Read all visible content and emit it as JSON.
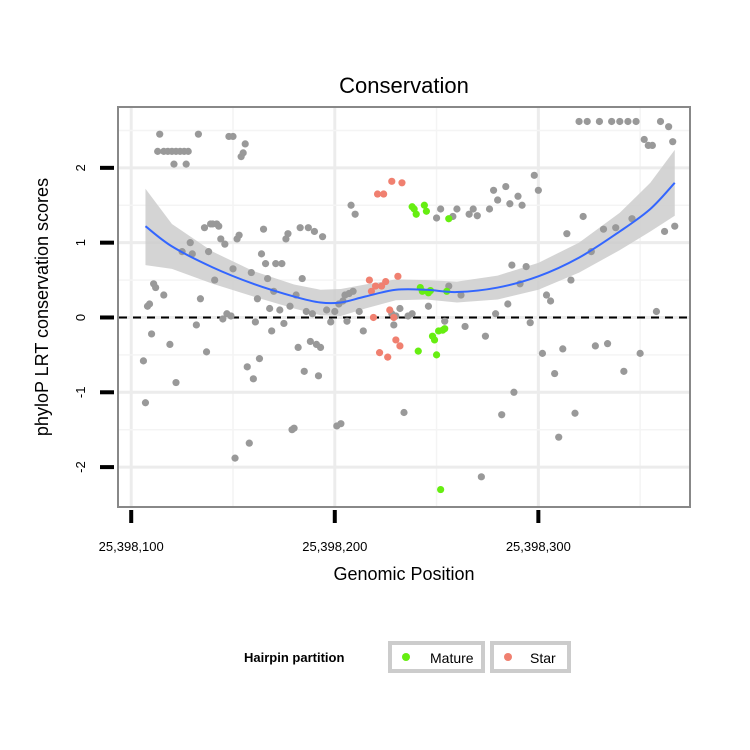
{
  "chart_data": {
    "type": "scatter",
    "title": "Conservation",
    "xlabel": "Genomic Position",
    "ylabel": "phyloP LRT conservation scores",
    "xlim": [
      25398094,
      25398374
    ],
    "ylim": [
      -2.52,
      2.8
    ],
    "x_ticks": [
      25398100,
      25398200,
      25398300
    ],
    "x_tick_labels": [
      "25,398,100",
      "25,398,200",
      "25,398,300"
    ],
    "y_ticks": [
      -2,
      -1,
      0,
      1,
      2
    ],
    "y_tick_labels": [
      "-2",
      "-1",
      "0",
      "1",
      "2"
    ],
    "grid": true,
    "reference_line": {
      "y": 0,
      "style": "dashed"
    },
    "colors": {
      "other": "#999999",
      "mature": "#66ee11",
      "star": "#f08070",
      "smooth": "#3366ff",
      "ribbon": "#cccccc"
    },
    "legend": {
      "title": "Hairpin partition",
      "position": "bottom",
      "entries": [
        {
          "label": "Mature",
          "color": "#66ee11"
        },
        {
          "label": "Star",
          "color": "#f08070"
        }
      ]
    },
    "series": [
      {
        "group": "other",
        "points": [
          [
            25398106,
            -0.58
          ],
          [
            25398107,
            -1.14
          ],
          [
            25398108,
            0.15
          ],
          [
            25398109,
            0.18
          ],
          [
            25398110,
            -0.22
          ],
          [
            25398111,
            0.45
          ],
          [
            25398112,
            0.4
          ],
          [
            25398113,
            2.22
          ],
          [
            25398114,
            2.45
          ],
          [
            25398116,
            2.22
          ],
          [
            25398116,
            0.3
          ],
          [
            25398118,
            2.22
          ],
          [
            25398119,
            -0.36
          ],
          [
            25398120,
            2.22
          ],
          [
            25398121,
            2.05
          ],
          [
            25398122,
            2.22
          ],
          [
            25398122,
            -0.87
          ],
          [
            25398124,
            2.22
          ],
          [
            25398125,
            0.88
          ],
          [
            25398126,
            2.22
          ],
          [
            25398127,
            2.05
          ],
          [
            25398128,
            2.22
          ],
          [
            25398129,
            1.0
          ],
          [
            25398130,
            0.85
          ],
          [
            25398132,
            -0.1
          ],
          [
            25398133,
            2.45
          ],
          [
            25398134,
            0.25
          ],
          [
            25398136,
            1.2
          ],
          [
            25398137,
            -0.46
          ],
          [
            25398138,
            0.88
          ],
          [
            25398139,
            1.25
          ],
          [
            25398140,
            1.25
          ],
          [
            25398141,
            0.5
          ],
          [
            25398142,
            1.25
          ],
          [
            25398143,
            1.22
          ],
          [
            25398144,
            1.05
          ],
          [
            25398145,
            -0.02
          ],
          [
            25398146,
            0.98
          ],
          [
            25398147,
            0.05
          ],
          [
            25398148,
            2.42
          ],
          [
            25398149,
            0.02
          ],
          [
            25398150,
            2.42
          ],
          [
            25398150,
            0.65
          ],
          [
            25398151,
            -1.88
          ],
          [
            25398152,
            1.05
          ],
          [
            25398153,
            1.1
          ],
          [
            25398154,
            2.15
          ],
          [
            25398155,
            2.2
          ],
          [
            25398156,
            2.32
          ],
          [
            25398157,
            -0.66
          ],
          [
            25398158,
            -1.68
          ],
          [
            25398159,
            0.6
          ],
          [
            25398160,
            -0.82
          ],
          [
            25398161,
            -0.06
          ],
          [
            25398162,
            0.25
          ],
          [
            25398163,
            -0.55
          ],
          [
            25398164,
            0.85
          ],
          [
            25398165,
            1.18
          ],
          [
            25398166,
            0.72
          ],
          [
            25398167,
            0.52
          ],
          [
            25398168,
            0.12
          ],
          [
            25398169,
            -0.18
          ],
          [
            25398170,
            0.35
          ],
          [
            25398171,
            0.72
          ],
          [
            25398173,
            0.1
          ],
          [
            25398174,
            0.72
          ],
          [
            25398175,
            -0.08
          ],
          [
            25398176,
            1.05
          ],
          [
            25398177,
            1.12
          ],
          [
            25398178,
            0.15
          ],
          [
            25398179,
            -1.5
          ],
          [
            25398180,
            -1.48
          ],
          [
            25398181,
            0.3
          ],
          [
            25398182,
            -0.4
          ],
          [
            25398183,
            1.2
          ],
          [
            25398184,
            0.52
          ],
          [
            25398185,
            -0.72
          ],
          [
            25398186,
            0.08
          ],
          [
            25398187,
            1.2
          ],
          [
            25398188,
            -0.32
          ],
          [
            25398189,
            0.05
          ],
          [
            25398190,
            1.15
          ],
          [
            25398191,
            -0.36
          ],
          [
            25398192,
            -0.78
          ],
          [
            25398193,
            -0.4
          ],
          [
            25398194,
            1.08
          ],
          [
            25398196,
            0.1
          ],
          [
            25398198,
            -0.06
          ],
          [
            25398200,
            0.08
          ],
          [
            25398201,
            -1.45
          ],
          [
            25398202,
            0.18
          ],
          [
            25398203,
            -1.42
          ],
          [
            25398204,
            0.22
          ],
          [
            25398205,
            0.3
          ],
          [
            25398206,
            -0.05
          ],
          [
            25398207,
            0.32
          ],
          [
            25398208,
            1.5
          ],
          [
            25398209,
            0.35
          ],
          [
            25398210,
            1.38
          ],
          [
            25398212,
            0.08
          ],
          [
            25398214,
            -0.18
          ],
          [
            25398228,
            0.05
          ],
          [
            25398229,
            -0.1
          ],
          [
            25398230,
            0.02
          ],
          [
            25398232,
            0.12
          ],
          [
            25398234,
            -1.27
          ],
          [
            25398236,
            0.02
          ],
          [
            25398238,
            0.05
          ],
          [
            25398246,
            0.15
          ],
          [
            25398250,
            1.33
          ],
          [
            25398252,
            1.45
          ],
          [
            25398254,
            -0.05
          ],
          [
            25398256,
            0.42
          ],
          [
            25398258,
            1.35
          ],
          [
            25398260,
            1.45
          ],
          [
            25398262,
            0.3
          ],
          [
            25398264,
            -0.12
          ],
          [
            25398266,
            1.38
          ],
          [
            25398268,
            1.45
          ],
          [
            25398270,
            1.36
          ],
          [
            25398272,
            -2.13
          ],
          [
            25398274,
            -0.25
          ],
          [
            25398276,
            1.45
          ],
          [
            25398278,
            1.7
          ],
          [
            25398279,
            0.05
          ],
          [
            25398280,
            1.57
          ],
          [
            25398282,
            -1.3
          ],
          [
            25398284,
            1.75
          ],
          [
            25398285,
            0.18
          ],
          [
            25398286,
            1.52
          ],
          [
            25398287,
            0.7
          ],
          [
            25398288,
            -1.0
          ],
          [
            25398290,
            1.62
          ],
          [
            25398291,
            0.45
          ],
          [
            25398292,
            1.5
          ],
          [
            25398294,
            0.68
          ],
          [
            25398296,
            -0.07
          ],
          [
            25398298,
            1.9
          ],
          [
            25398300,
            1.7
          ],
          [
            25398302,
            -0.48
          ],
          [
            25398304,
            0.3
          ],
          [
            25398306,
            0.22
          ],
          [
            25398308,
            -0.75
          ],
          [
            25398310,
            -1.6
          ],
          [
            25398312,
            -0.42
          ],
          [
            25398314,
            1.12
          ],
          [
            25398316,
            0.5
          ],
          [
            25398318,
            -1.28
          ],
          [
            25398320,
            2.62
          ],
          [
            25398322,
            1.35
          ],
          [
            25398324,
            2.62
          ],
          [
            25398326,
            0.88
          ],
          [
            25398328,
            -0.38
          ],
          [
            25398330,
            2.62
          ],
          [
            25398332,
            1.18
          ],
          [
            25398334,
            -0.35
          ],
          [
            25398336,
            2.62
          ],
          [
            25398338,
            1.2
          ],
          [
            25398340,
            2.62
          ],
          [
            25398342,
            -0.72
          ],
          [
            25398344,
            2.62
          ],
          [
            25398346,
            1.32
          ],
          [
            25398348,
            2.62
          ],
          [
            25398350,
            -0.48
          ],
          [
            25398352,
            2.38
          ],
          [
            25398354,
            2.3
          ],
          [
            25398356,
            2.3
          ],
          [
            25398358,
            0.08
          ],
          [
            25398360,
            2.62
          ],
          [
            25398362,
            1.15
          ],
          [
            25398364,
            2.55
          ],
          [
            25398366,
            2.35
          ],
          [
            25398367,
            1.22
          ]
        ]
      },
      {
        "group": "mature",
        "points": [
          [
            25398238,
            1.48
          ],
          [
            25398239,
            1.45
          ],
          [
            25398240,
            1.38
          ],
          [
            25398241,
            -0.45
          ],
          [
            25398242,
            0.4
          ],
          [
            25398243,
            0.35
          ],
          [
            25398244,
            1.5
          ],
          [
            25398245,
            1.42
          ],
          [
            25398246,
            0.33
          ],
          [
            25398247,
            0.36
          ],
          [
            25398248,
            -0.25
          ],
          [
            25398249,
            -0.3
          ],
          [
            25398250,
            -0.5
          ],
          [
            25398251,
            -0.18
          ],
          [
            25398252,
            -2.3
          ],
          [
            25398253,
            -0.17
          ],
          [
            25398254,
            -0.15
          ],
          [
            25398255,
            0.35
          ],
          [
            25398256,
            1.32
          ]
        ]
      },
      {
        "group": "star",
        "points": [
          [
            25398217,
            0.5
          ],
          [
            25398218,
            0.35
          ],
          [
            25398219,
            0.0
          ],
          [
            25398220,
            0.42
          ],
          [
            25398221,
            1.65
          ],
          [
            25398222,
            -0.47
          ],
          [
            25398223,
            0.42
          ],
          [
            25398224,
            1.65
          ],
          [
            25398225,
            0.48
          ],
          [
            25398226,
            -0.53
          ],
          [
            25398227,
            0.1
          ],
          [
            25398228,
            1.82
          ],
          [
            25398229,
            0.0
          ],
          [
            25398230,
            -0.3
          ],
          [
            25398231,
            0.55
          ],
          [
            25398232,
            -0.38
          ],
          [
            25398233,
            1.8
          ]
        ]
      }
    ],
    "smooth": [
      {
        "x": 25398107,
        "y": 1.22,
        "lo": 0.7,
        "hi": 1.72
      },
      {
        "x": 25398120,
        "y": 0.95,
        "lo": 0.65,
        "hi": 1.25
      },
      {
        "x": 25398140,
        "y": 0.67,
        "lo": 0.45,
        "hi": 0.88
      },
      {
        "x": 25398160,
        "y": 0.45,
        "lo": 0.28,
        "hi": 0.62
      },
      {
        "x": 25398180,
        "y": 0.28,
        "lo": 0.12,
        "hi": 0.44
      },
      {
        "x": 25398193,
        "y": 0.2,
        "lo": 0.03,
        "hi": 0.37
      },
      {
        "x": 25398203,
        "y": 0.2,
        "lo": 0.02,
        "hi": 0.38
      },
      {
        "x": 25398215,
        "y": 0.28,
        "lo": 0.12,
        "hi": 0.44
      },
      {
        "x": 25398230,
        "y": 0.37,
        "lo": 0.23,
        "hi": 0.51
      },
      {
        "x": 25398245,
        "y": 0.37,
        "lo": 0.24,
        "hi": 0.5
      },
      {
        "x": 25398260,
        "y": 0.34,
        "lo": 0.2,
        "hi": 0.48
      },
      {
        "x": 25398280,
        "y": 0.4,
        "lo": 0.24,
        "hi": 0.56
      },
      {
        "x": 25398300,
        "y": 0.55,
        "lo": 0.37,
        "hi": 0.73
      },
      {
        "x": 25398320,
        "y": 0.8,
        "lo": 0.6,
        "hi": 1.0
      },
      {
        "x": 25398340,
        "y": 1.15,
        "lo": 0.9,
        "hi": 1.4
      },
      {
        "x": 25398355,
        "y": 1.45,
        "lo": 1.15,
        "hi": 1.8
      },
      {
        "x": 25398367,
        "y": 1.8,
        "lo": 1.36,
        "hi": 2.24
      }
    ]
  }
}
